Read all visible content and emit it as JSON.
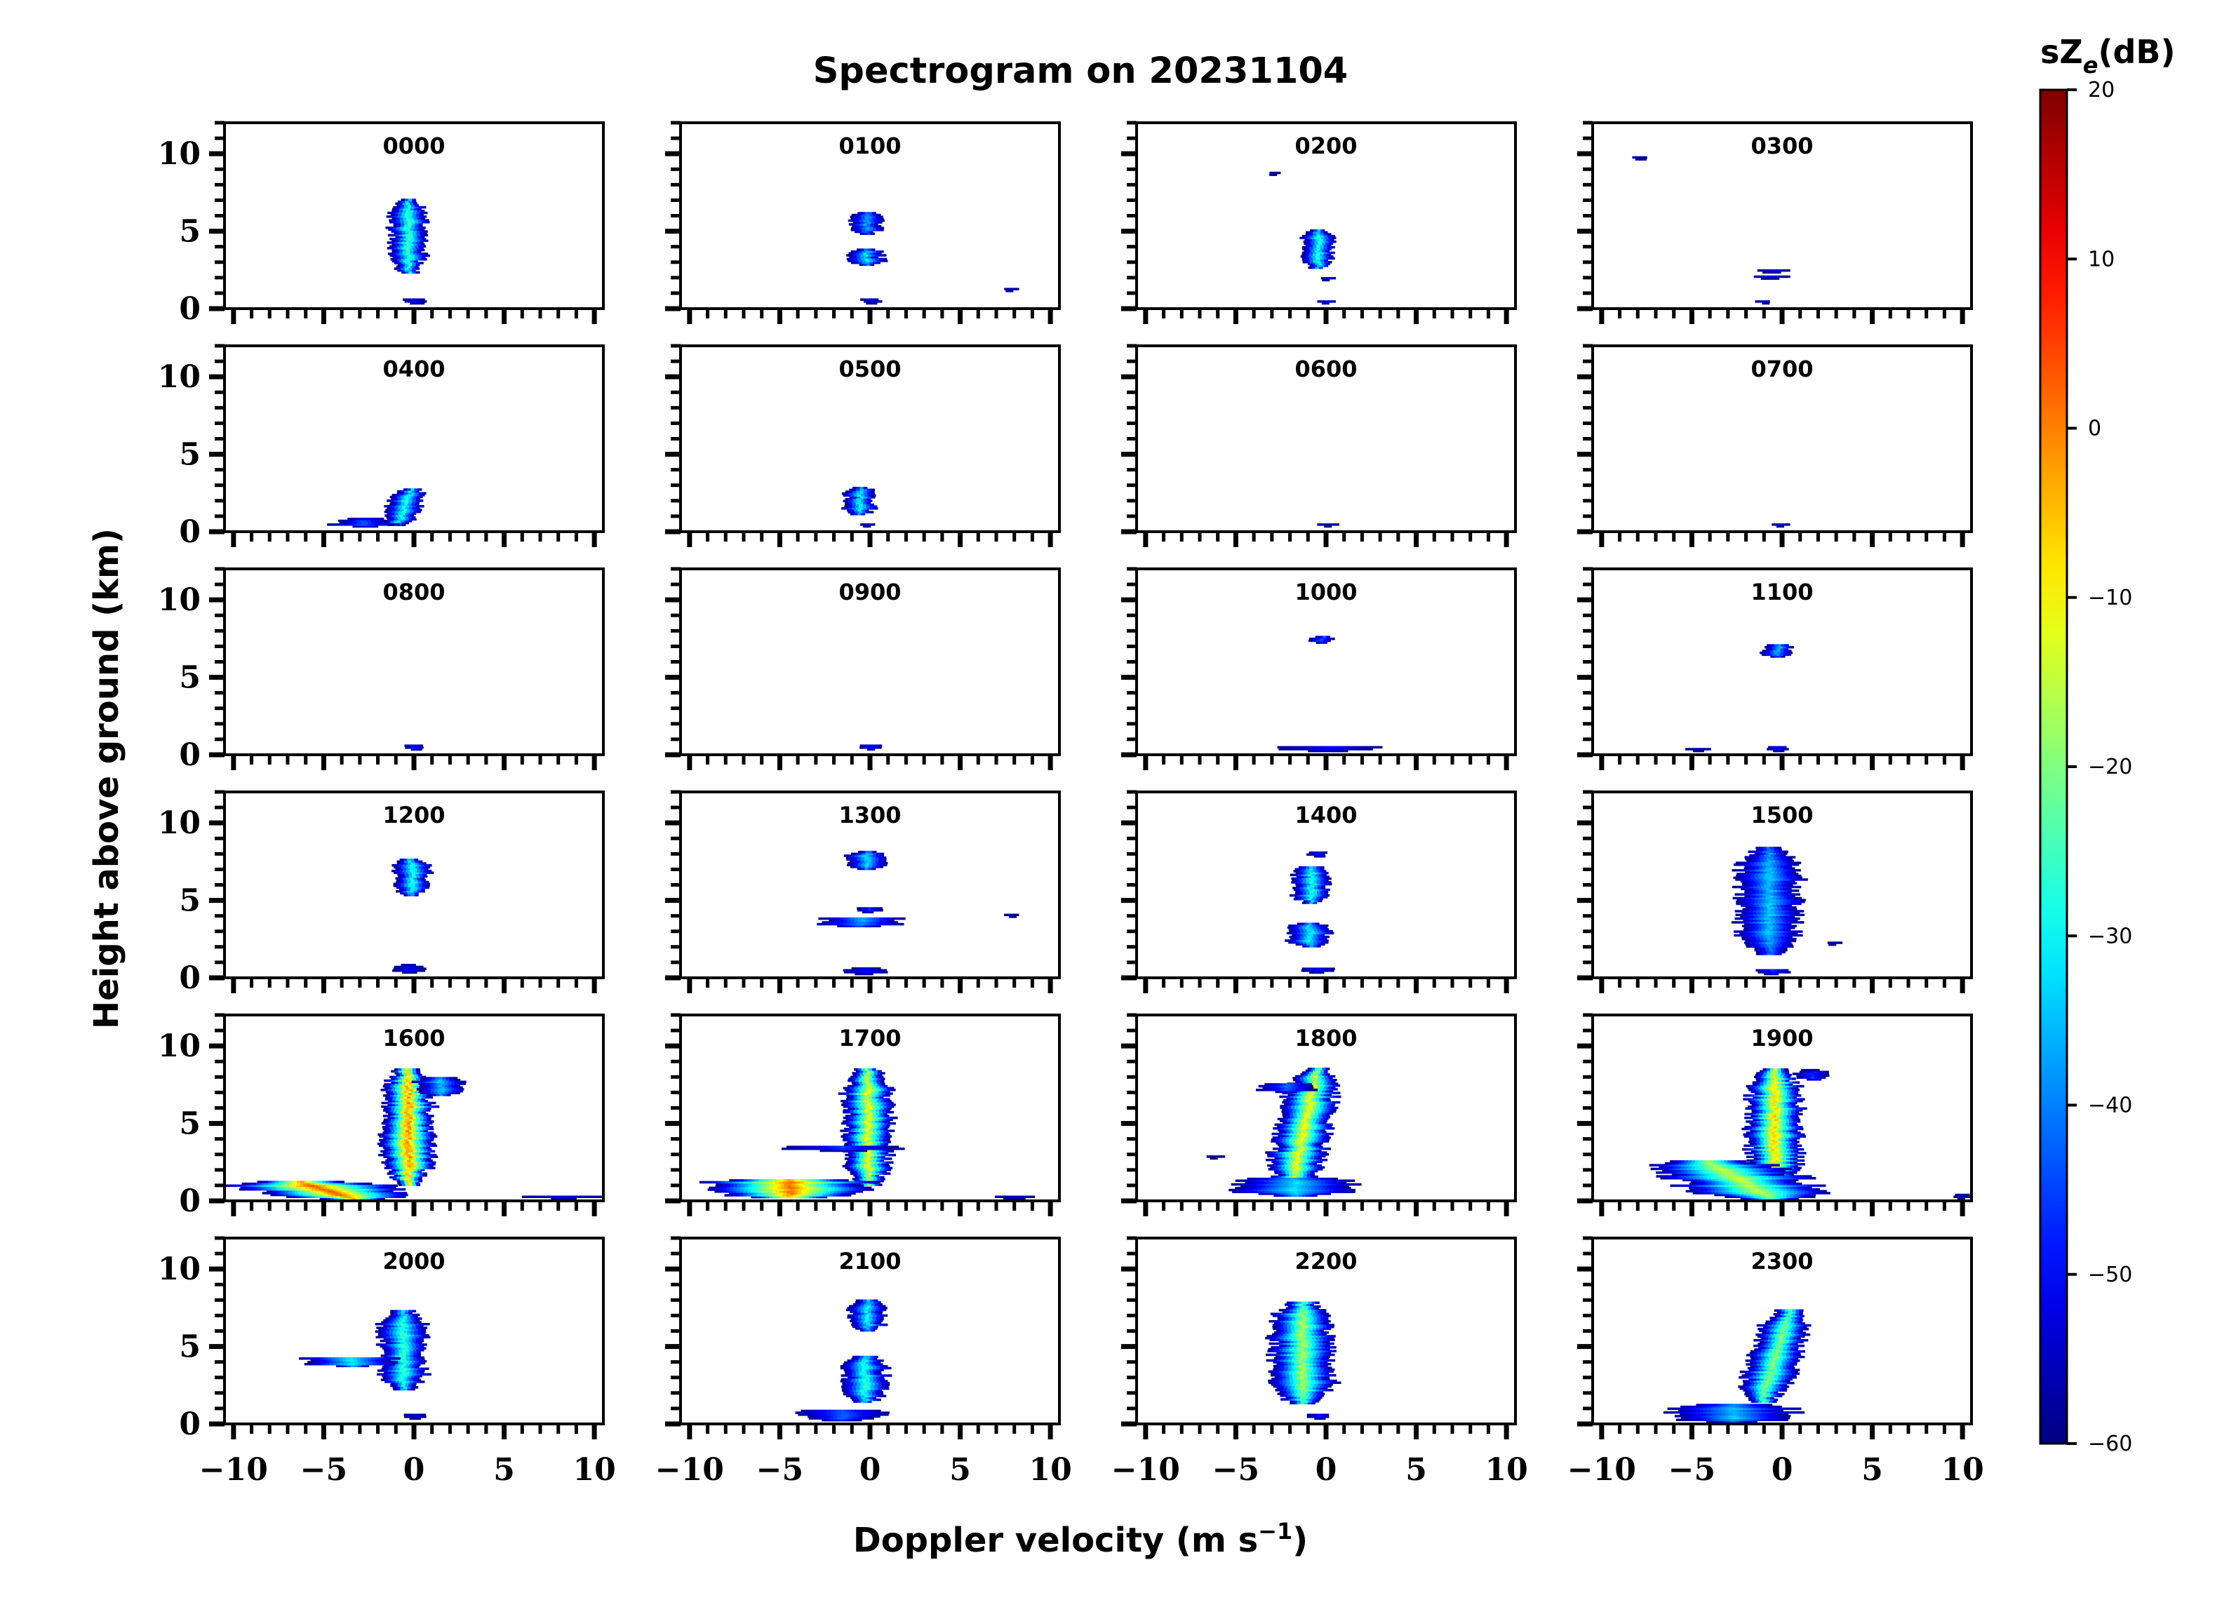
{
  "chart_data": {
    "type": "heatmap",
    "title": "Spectrogram on 20231104",
    "xlabel": "Doppler velocity (m s⁻¹)",
    "ylabel": "Height above ground (km)",
    "xlim": [
      -10.5,
      10.5
    ],
    "ylim": [
      0,
      12
    ],
    "x_ticks": [
      -10,
      -5,
      0,
      5,
      10
    ],
    "x_tick_labels": [
      "−10",
      "−5",
      "0",
      "5",
      "10"
    ],
    "y_ticks": [
      0,
      5,
      10
    ],
    "y_tick_labels": [
      "0",
      "5",
      "10"
    ],
    "grid": false,
    "colorbar": {
      "label": "sZe(dB)",
      "label_main": "sZ",
      "label_sub": "e",
      "label_unit": "(dB)",
      "min": -60,
      "max": 20,
      "ticks": [
        20,
        10,
        0,
        -10,
        -20,
        -30,
        -40,
        -50,
        -60
      ],
      "tick_labels": [
        "20",
        "10",
        "0",
        "−10",
        "−20",
        "−30",
        "−40",
        "−50",
        "−60"
      ],
      "colormap": "jet",
      "colors": [
        "#00007f",
        "#0000ff",
        "#007fff",
        "#00ffff",
        "#7fff7f",
        "#ffff00",
        "#ff7f00",
        "#ff0000",
        "#7f0000"
      ]
    },
    "panels": [
      {
        "label": "0000",
        "echoes": [
          {
            "h0": 2.3,
            "h1": 7.0,
            "v": -0.4,
            "w": 0.9,
            "peak": -22,
            "lean": 0
          },
          {
            "h0": 0.3,
            "h1": 0.6,
            "v": 0.0,
            "w": 0.6,
            "peak": -50,
            "lean": 0
          }
        ]
      },
      {
        "label": "0100",
        "echoes": [
          {
            "h0": 4.8,
            "h1": 6.2,
            "v": -0.3,
            "w": 0.8,
            "peak": -35,
            "lean": 0
          },
          {
            "h0": 2.8,
            "h1": 3.8,
            "v": -0.3,
            "w": 0.9,
            "peak": -30,
            "lean": 0
          },
          {
            "h0": 0.3,
            "h1": 0.6,
            "v": 0.0,
            "w": 0.5,
            "peak": -50,
            "lean": 0
          },
          {
            "h0": 1.1,
            "h1": 1.3,
            "v": 7.8,
            "w": 0.4,
            "peak": -55,
            "lean": 0
          }
        ]
      },
      {
        "label": "0200",
        "echoes": [
          {
            "h0": 2.6,
            "h1": 5.1,
            "v": -0.5,
            "w": 0.8,
            "peak": -25,
            "lean": 0
          },
          {
            "h0": 1.8,
            "h1": 2.0,
            "v": 0.0,
            "w": 0.4,
            "peak": -50,
            "lean": 0
          },
          {
            "h0": 0.3,
            "h1": 0.5,
            "v": 0.0,
            "w": 0.5,
            "peak": -50,
            "lean": 0
          },
          {
            "h0": 8.6,
            "h1": 8.8,
            "v": -3.0,
            "w": 0.3,
            "peak": -55,
            "lean": 0
          }
        ]
      },
      {
        "label": "0300",
        "echoes": [
          {
            "h0": 2.3,
            "h1": 2.5,
            "v": -0.5,
            "w": 0.9,
            "peak": -50,
            "lean": 0
          },
          {
            "h0": 1.9,
            "h1": 2.1,
            "v": -0.7,
            "w": 0.9,
            "peak": -50,
            "lean": 0
          },
          {
            "h0": 0.3,
            "h1": 0.5,
            "v": -1.0,
            "w": 0.4,
            "peak": -52,
            "lean": 0
          },
          {
            "h0": 9.6,
            "h1": 9.8,
            "v": -8.0,
            "w": 0.4,
            "peak": -55,
            "lean": 0
          }
        ]
      },
      {
        "label": "0400",
        "echoes": [
          {
            "h0": 0.4,
            "h1": 2.7,
            "v": -0.6,
            "w": 0.9,
            "peak": -25,
            "lean": 0.4
          },
          {
            "h0": 0.3,
            "h1": 0.8,
            "v": -2.8,
            "w": 1.6,
            "peak": -42,
            "lean": 0
          }
        ]
      },
      {
        "label": "0500",
        "echoes": [
          {
            "h0": 1.1,
            "h1": 2.8,
            "v": -0.6,
            "w": 0.8,
            "peak": -28,
            "lean": 0
          },
          {
            "h0": 0.3,
            "h1": 0.5,
            "v": -0.2,
            "w": 0.4,
            "peak": -52,
            "lean": 0
          }
        ]
      },
      {
        "label": "0600",
        "echoes": [
          {
            "h0": 0.3,
            "h1": 0.5,
            "v": 0.0,
            "w": 0.5,
            "peak": -52,
            "lean": 0
          }
        ]
      },
      {
        "label": "0700",
        "echoes": [
          {
            "h0": 0.3,
            "h1": 0.5,
            "v": -0.2,
            "w": 0.4,
            "peak": -52,
            "lean": 0
          }
        ]
      },
      {
        "label": "0800",
        "echoes": [
          {
            "h0": 0.3,
            "h1": 0.6,
            "v": 0.0,
            "w": 0.5,
            "peak": -48,
            "lean": 0
          }
        ]
      },
      {
        "label": "0900",
        "echoes": [
          {
            "h0": 0.3,
            "h1": 0.6,
            "v": 0.0,
            "w": 0.5,
            "peak": -48,
            "lean": 0
          }
        ]
      },
      {
        "label": "1000",
        "echoes": [
          {
            "h0": 7.2,
            "h1": 7.6,
            "v": -0.3,
            "w": 0.6,
            "peak": -40,
            "lean": 0
          },
          {
            "h0": 0.2,
            "h1": 0.5,
            "v": 0.0,
            "w": 2.5,
            "peak": -48,
            "lean": 0
          }
        ]
      },
      {
        "label": "1100",
        "echoes": [
          {
            "h0": 6.3,
            "h1": 7.1,
            "v": -0.3,
            "w": 0.7,
            "peak": -33,
            "lean": 0
          },
          {
            "h0": 0.2,
            "h1": 0.5,
            "v": -0.3,
            "w": 0.5,
            "peak": -48,
            "lean": 0
          },
          {
            "h0": 0.2,
            "h1": 0.4,
            "v": -4.8,
            "w": 0.6,
            "peak": -55,
            "lean": 0
          }
        ]
      },
      {
        "label": "1200",
        "echoes": [
          {
            "h0": 5.3,
            "h1": 7.7,
            "v": -0.2,
            "w": 0.9,
            "peak": -25,
            "lean": 0
          },
          {
            "h0": 0.3,
            "h1": 0.8,
            "v": -0.3,
            "w": 0.7,
            "peak": -48,
            "lean": 0
          }
        ]
      },
      {
        "label": "1300",
        "echoes": [
          {
            "h0": 7.0,
            "h1": 8.1,
            "v": -0.3,
            "w": 0.9,
            "peak": -30,
            "lean": 0
          },
          {
            "h0": 4.2,
            "h1": 4.5,
            "v": -0.2,
            "w": 0.6,
            "peak": -45,
            "lean": 0
          },
          {
            "h0": 3.3,
            "h1": 3.9,
            "v": -0.6,
            "w": 2.2,
            "peak": -35,
            "lean": 0
          },
          {
            "h0": 0.2,
            "h1": 0.6,
            "v": -0.3,
            "w": 1.0,
            "peak": -48,
            "lean": 0
          },
          {
            "h0": 3.9,
            "h1": 4.1,
            "v": 7.8,
            "w": 0.4,
            "peak": -55,
            "lean": 0
          }
        ]
      },
      {
        "label": "1400",
        "echoes": [
          {
            "h0": 4.8,
            "h1": 7.2,
            "v": -0.9,
            "w": 0.9,
            "peak": -25,
            "lean": 0
          },
          {
            "h0": 2.0,
            "h1": 3.5,
            "v": -1.0,
            "w": 1.1,
            "peak": -28,
            "lean": 0
          },
          {
            "h0": 7.8,
            "h1": 8.1,
            "v": -0.5,
            "w": 0.5,
            "peak": -48,
            "lean": 0
          },
          {
            "h0": 0.3,
            "h1": 0.6,
            "v": -0.5,
            "w": 0.8,
            "peak": -48,
            "lean": 0
          }
        ]
      },
      {
        "label": "1500",
        "echoes": [
          {
            "h0": 1.5,
            "h1": 8.4,
            "v": -0.8,
            "w": 1.6,
            "peak": -32,
            "lean": 0
          },
          {
            "h0": 0.2,
            "h1": 0.5,
            "v": -0.6,
            "w": 1.0,
            "peak": -45,
            "lean": 0
          },
          {
            "h0": 2.1,
            "h1": 2.3,
            "v": 2.8,
            "w": 0.4,
            "peak": -55,
            "lean": 0
          }
        ]
      },
      {
        "label": "1600",
        "echoes": [
          {
            "h0": 1.0,
            "h1": 8.5,
            "v": -0.4,
            "w": 1.3,
            "peak": 2,
            "lean": 0
          },
          {
            "h0": 0.1,
            "h1": 1.2,
            "v": -5.0,
            "w": 4.2,
            "peak": 5,
            "lean": -1.5
          },
          {
            "h0": 6.8,
            "h1": 8.0,
            "v": 1.4,
            "w": 1.2,
            "peak": -32,
            "lean": 0
          },
          {
            "h0": 0.1,
            "h1": 0.3,
            "v": 8.2,
            "w": 1.8,
            "peak": -52,
            "lean": 0
          }
        ]
      },
      {
        "label": "1700",
        "echoes": [
          {
            "h0": 1.0,
            "h1": 8.5,
            "v": -0.2,
            "w": 1.2,
            "peak": -8,
            "lean": 0
          },
          {
            "h0": 0.2,
            "h1": 1.4,
            "v": -4.5,
            "w": 4.2,
            "peak": 3,
            "lean": 0
          },
          {
            "h0": 3.2,
            "h1": 3.5,
            "v": -1.5,
            "w": 2.8,
            "peak": -45,
            "lean": 0
          },
          {
            "h0": 0.1,
            "h1": 0.3,
            "v": 8.0,
            "w": 1.2,
            "peak": -52,
            "lean": 0
          }
        ]
      },
      {
        "label": "1800",
        "echoes": [
          {
            "h0": 0.8,
            "h1": 8.5,
            "v": -1.3,
            "w": 1.4,
            "peak": -8,
            "lean": 0.7
          },
          {
            "h0": 0.3,
            "h1": 1.5,
            "v": -1.8,
            "w": 3.0,
            "peak": -30,
            "lean": 0
          },
          {
            "h0": 7.0,
            "h1": 7.6,
            "v": -2.2,
            "w": 1.4,
            "peak": -40,
            "lean": 0
          },
          {
            "h0": 2.7,
            "h1": 2.9,
            "v": -6.2,
            "w": 0.4,
            "peak": -55,
            "lean": 0
          }
        ]
      },
      {
        "label": "1900",
        "echoes": [
          {
            "h0": 1.0,
            "h1": 8.5,
            "v": -0.5,
            "w": 1.4,
            "peak": -4,
            "lean": 0
          },
          {
            "h0": 0.1,
            "h1": 2.6,
            "v": -2.5,
            "w": 3.6,
            "peak": -12,
            "lean": -1.8
          },
          {
            "h0": 7.8,
            "h1": 8.4,
            "v": 1.6,
            "w": 0.8,
            "peak": -45,
            "lean": 0
          },
          {
            "h0": 0.1,
            "h1": 0.4,
            "v": 10.0,
            "w": 0.4,
            "peak": -55,
            "lean": 0
          }
        ]
      },
      {
        "label": "2000",
        "echoes": [
          {
            "h0": 2.2,
            "h1": 7.3,
            "v": -0.7,
            "w": 1.2,
            "peak": -23,
            "lean": 0
          },
          {
            "h0": 3.7,
            "h1": 4.3,
            "v": -3.5,
            "w": 2.4,
            "peak": -28,
            "lean": 0
          },
          {
            "h0": 0.3,
            "h1": 0.6,
            "v": 0.0,
            "w": 0.5,
            "peak": -50,
            "lean": 0
          }
        ]
      },
      {
        "label": "2100",
        "echoes": [
          {
            "h0": 6.0,
            "h1": 8.0,
            "v": -0.2,
            "w": 0.9,
            "peak": -28,
            "lean": 0
          },
          {
            "h0": 1.4,
            "h1": 4.4,
            "v": -0.4,
            "w": 1.1,
            "peak": -24,
            "lean": 0
          },
          {
            "h0": 0.2,
            "h1": 0.9,
            "v": -1.6,
            "w": 2.2,
            "peak": -40,
            "lean": 0
          }
        ]
      },
      {
        "label": "2200",
        "echoes": [
          {
            "h0": 1.3,
            "h1": 7.9,
            "v": -1.4,
            "w": 1.6,
            "peak": -14,
            "lean": 0
          },
          {
            "h0": 0.3,
            "h1": 0.6,
            "v": -0.4,
            "w": 0.7,
            "peak": -48,
            "lean": 0
          }
        ]
      },
      {
        "label": "2300",
        "echoes": [
          {
            "h0": 1.4,
            "h1": 7.4,
            "v": -0.4,
            "w": 1.3,
            "peak": -16,
            "lean": 0.8
          },
          {
            "h0": 0.1,
            "h1": 1.2,
            "v": -2.8,
            "w": 3.4,
            "peak": -32,
            "lean": 0
          }
        ]
      }
    ]
  }
}
